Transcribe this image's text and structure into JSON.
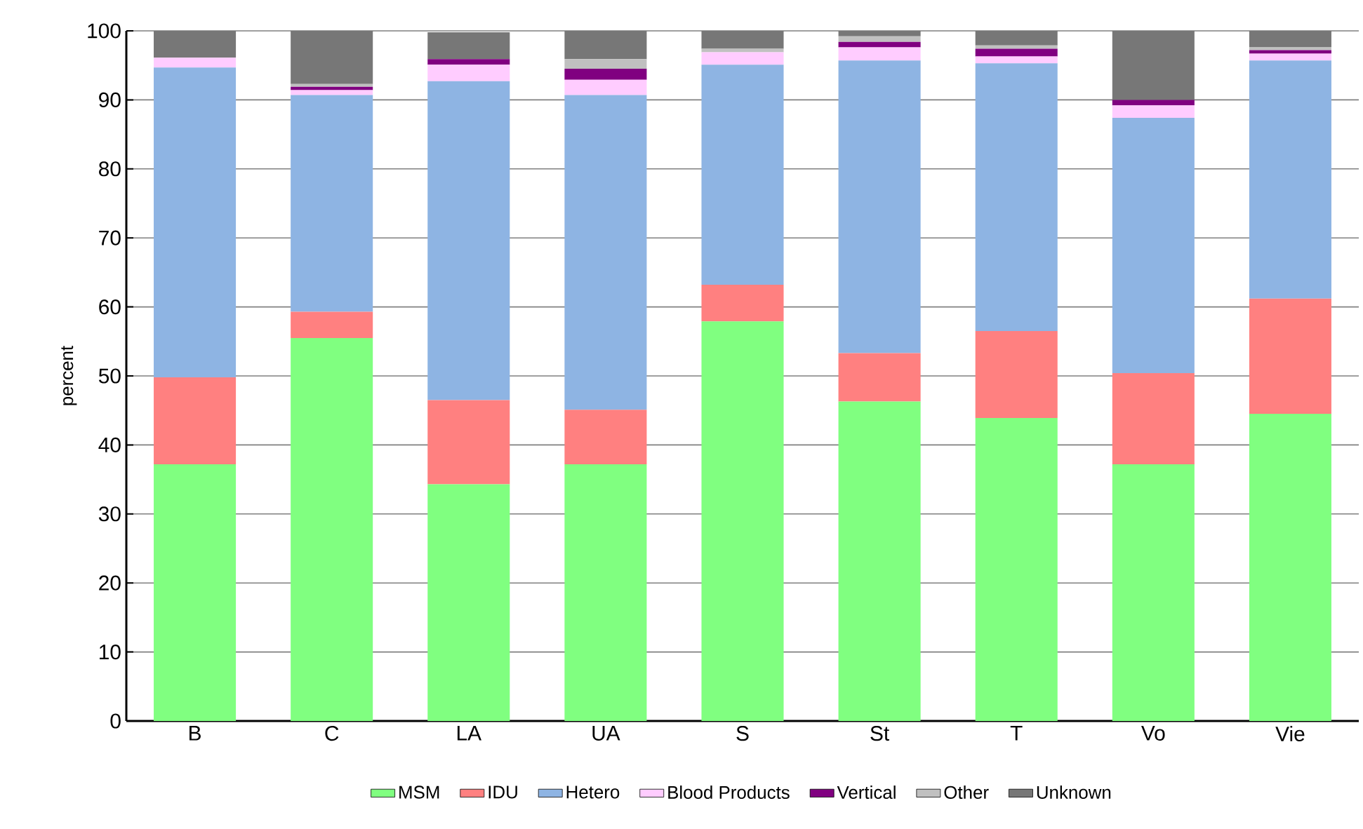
{
  "chart_data": {
    "type": "bar",
    "stacked": true,
    "ylabel": "percent",
    "categories": [
      "B",
      "C",
      "LA",
      "UA",
      "S",
      "St",
      "T",
      "Vo",
      "Vie"
    ],
    "series": [
      {
        "name": "MSM",
        "color": "#80ff80",
        "values": [
          37.2,
          55.5,
          34.3,
          37.2,
          57.9,
          46.3,
          43.9,
          37.2,
          44.5
        ]
      },
      {
        "name": "IDU",
        "color": "#ff8080",
        "values": [
          12.6,
          3.8,
          12.2,
          7.9,
          5.3,
          7.0,
          12.6,
          13.2,
          16.7
        ]
      },
      {
        "name": "Hetero",
        "color": "#8eb4e3",
        "values": [
          44.9,
          31.4,
          46.2,
          45.6,
          31.9,
          42.4,
          38.8,
          37.0,
          34.5
        ]
      },
      {
        "name": "Blood Products",
        "color": "#ffccff",
        "values": [
          1.4,
          0.7,
          2.4,
          2.2,
          1.8,
          1.9,
          1.0,
          1.8,
          1.0
        ]
      },
      {
        "name": "Vertical",
        "color": "#800080",
        "values": [
          0,
          0.5,
          0.8,
          1.6,
          0,
          0.8,
          1.1,
          0.8,
          0.5
        ]
      },
      {
        "name": "Other",
        "color": "#c0c0c0",
        "values": [
          0,
          0.4,
          null,
          1.4,
          0.5,
          0.8,
          0.5,
          0,
          0.4
        ]
      },
      {
        "name": "Unknown",
        "color": "#777777",
        "values": [
          3.9,
          7.8,
          3.9,
          4.1,
          2.6,
          0.8,
          2.1,
          10.0,
          2.4
        ]
      }
    ],
    "ylim": [
      0,
      100
    ],
    "yticks": [
      0,
      10,
      20,
      30,
      40,
      50,
      60,
      70,
      80,
      90,
      100
    ],
    "grid": "y",
    "legend": "bottom"
  }
}
